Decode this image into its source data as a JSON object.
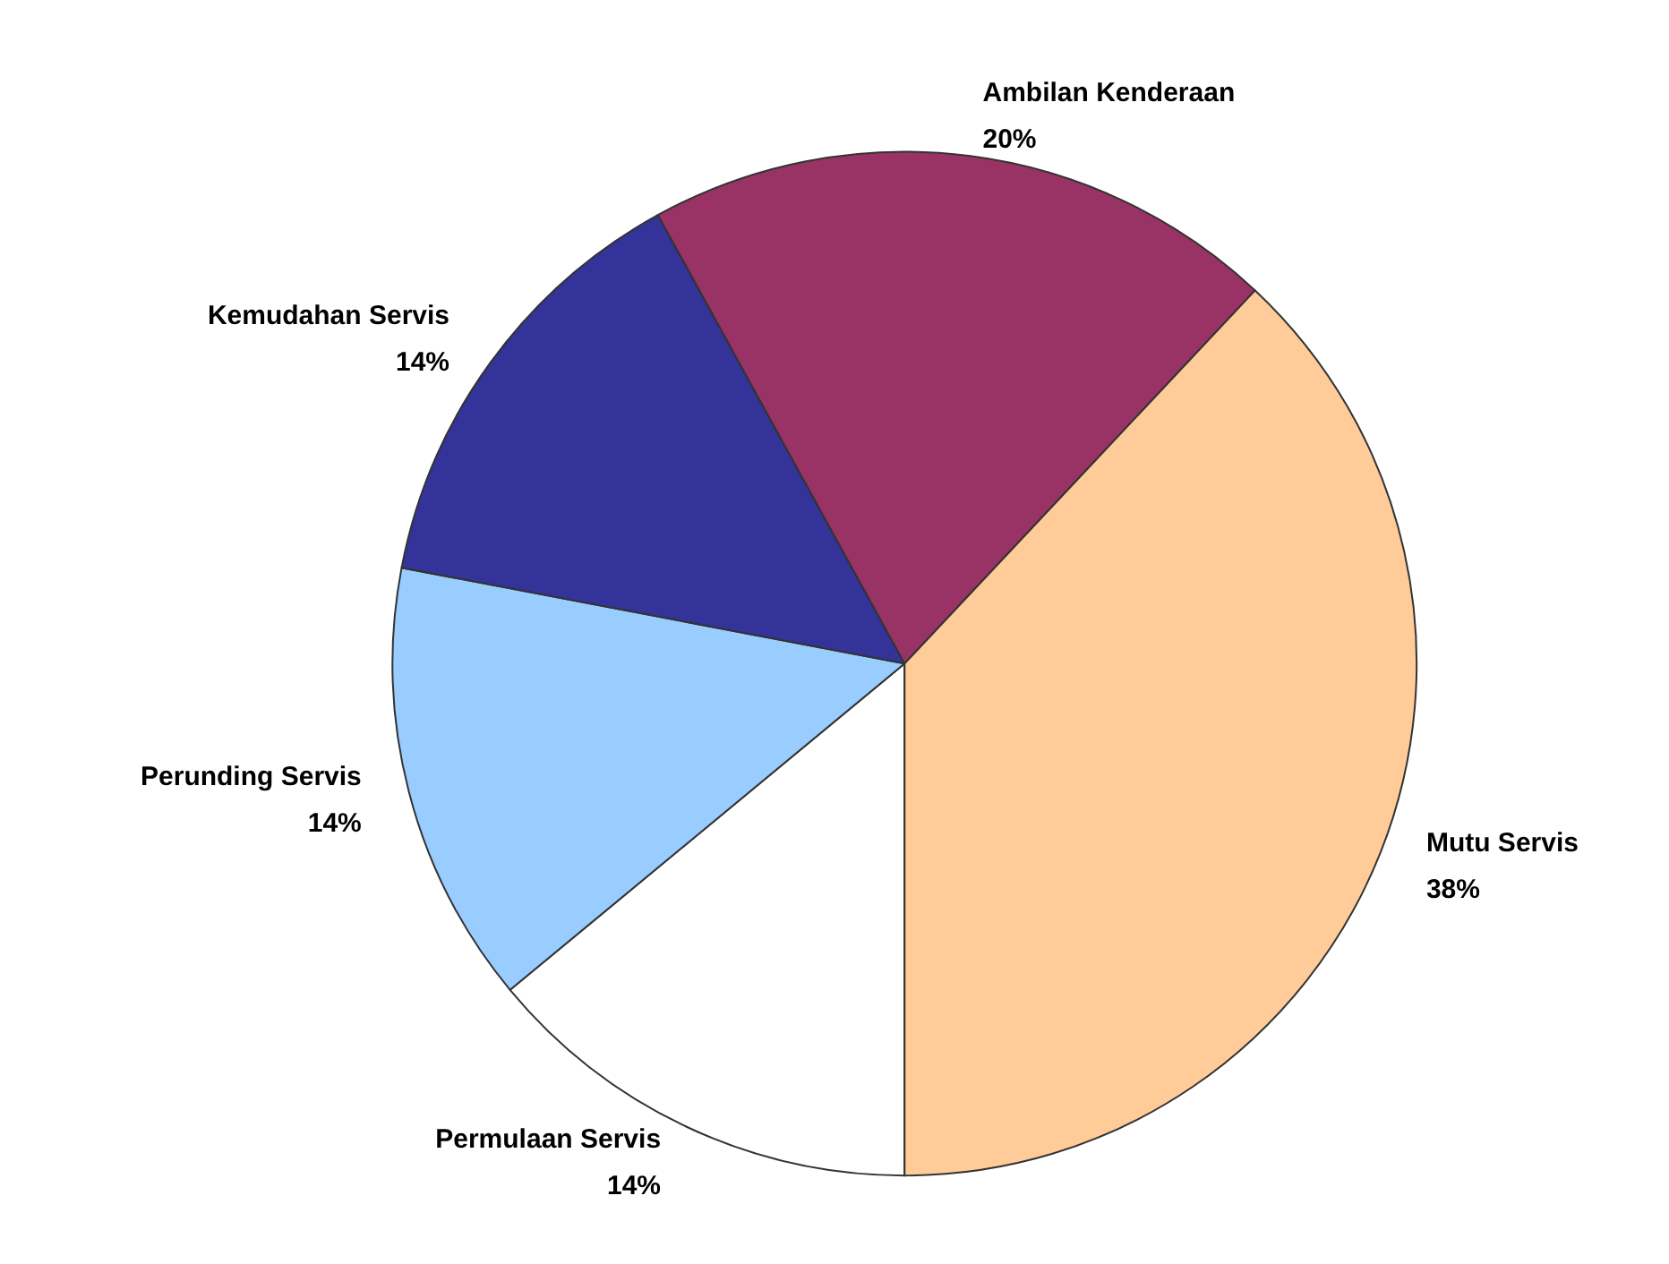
{
  "chart_data": {
    "type": "pie",
    "categories": [
      "Permulaan Servis",
      "Perunding Servis",
      "Kemudahan Servis",
      "Ambilan Kenderaan",
      "Mutu Servis"
    ],
    "values": [
      14,
      14,
      14,
      20,
      38
    ],
    "colors": [
      "#ffffff",
      "#99ccff",
      "#333399",
      "#993366",
      "#ffcc99"
    ],
    "value_labels": [
      "14%",
      "14%",
      "14%",
      "20%",
      "38%"
    ],
    "legend": false
  }
}
